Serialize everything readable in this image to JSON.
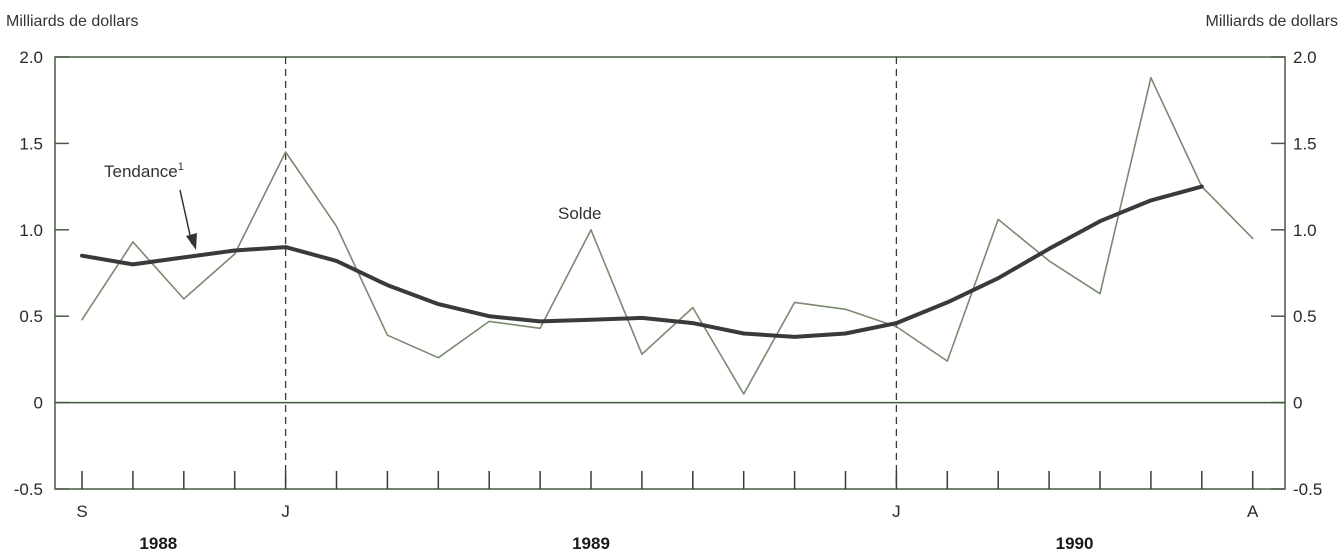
{
  "chart_data": {
    "type": "line",
    "ylabel_left": "Milliards de dollars",
    "ylabel_right": "Milliards de dollars",
    "ylim": [
      -0.5,
      2.0
    ],
    "yticks": [
      "2.0",
      "1.5",
      "1.0",
      "0.5",
      "0",
      "-0.5"
    ],
    "ytick_values": [
      2.0,
      1.5,
      1.0,
      0.5,
      0,
      -0.5
    ],
    "month_labels": [
      {
        "text": "S",
        "index": 0
      },
      {
        "text": "J",
        "index": 4
      },
      {
        "text": "J",
        "index": 16
      },
      {
        "text": "A",
        "index": 23
      }
    ],
    "year_labels": [
      {
        "text": "1988",
        "index": 1.5
      },
      {
        "text": "1989",
        "index": 10
      },
      {
        "text": "1990",
        "index": 19.5
      }
    ],
    "x_count": 24,
    "vlines": [
      4,
      16
    ],
    "series": [
      {
        "name": "Solde",
        "color": "#7a8a70",
        "values": [
          0.48,
          0.93,
          0.6,
          0.86,
          1.45,
          1.02,
          0.39,
          0.26,
          0.47,
          0.43,
          1.0,
          0.28,
          0.55,
          0.05,
          0.58,
          0.54,
          0.44,
          0.24,
          1.06,
          0.82,
          0.63,
          1.88,
          1.25,
          0.95
        ]
      },
      {
        "name": "Tendance¹",
        "color": "#3a3a3a",
        "values": [
          0.85,
          0.8,
          0.84,
          0.88,
          0.9,
          0.82,
          0.68,
          0.57,
          0.5,
          0.47,
          0.48,
          0.49,
          0.46,
          0.4,
          0.38,
          0.4,
          0.46,
          0.58,
          0.72,
          0.89,
          1.05,
          1.17,
          1.25,
          null
        ]
      }
    ],
    "annotations": {
      "tendance_label": "Tendance",
      "tendance_sup": "1",
      "solde_label": "Solde"
    },
    "colors": {
      "axis": "#3d5a3a",
      "frame": "#4a5a44",
      "trend": "#3a3a3a",
      "balance": "#7a8a70"
    }
  }
}
